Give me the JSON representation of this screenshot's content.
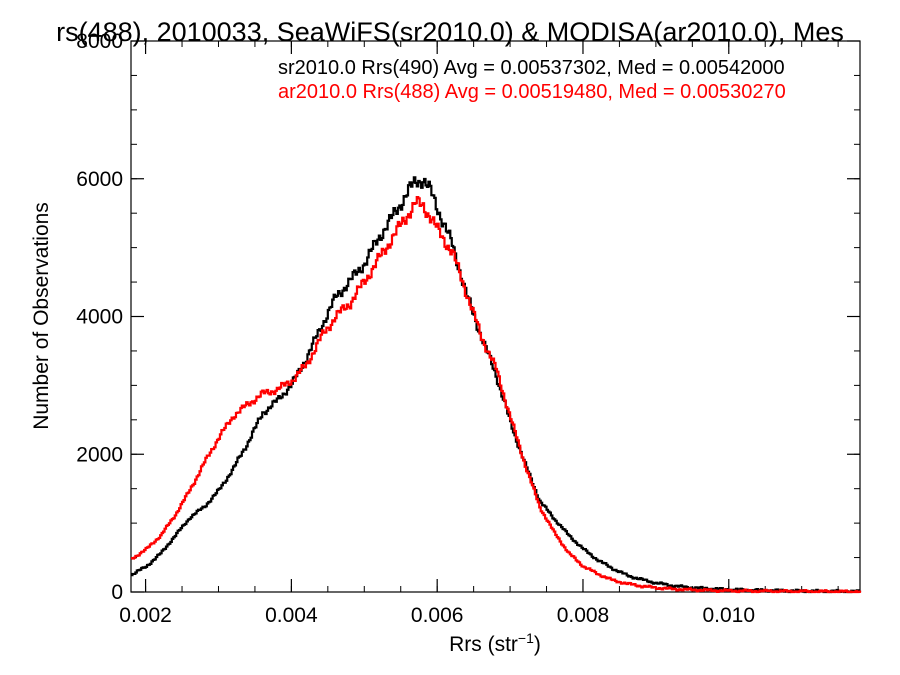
{
  "chart_data": {
    "type": "line",
    "title": "rs(488), 2010033, SeaWiFS(sr2010.0) & MODISA(ar2010.0), Mes",
    "xlabel_main": "Rrs (str",
    "xlabel_sup": "−1",
    "xlabel_close": ")",
    "ylabel": "Number of Observations",
    "xlim": [
      0.0018,
      0.0118
    ],
    "ylim": [
      0,
      8000
    ],
    "x_ticks": [
      0.002,
      0.004,
      0.006,
      0.008,
      0.01
    ],
    "x_tick_labels": [
      "0.002",
      "0.004",
      "0.006",
      "0.008",
      "0.010"
    ],
    "y_ticks": [
      0,
      2000,
      4000,
      6000,
      8000
    ],
    "y_tick_labels": [
      "0",
      "2000",
      "4000",
      "6000",
      "8000"
    ],
    "x_minor_step": 0.0005,
    "y_minor_step": 500,
    "grid": false,
    "legend_position": "top-right",
    "series": [
      {
        "legend": "sr2010.0 Rrs(490) Avg = 0.00537302, Med = 0.00542000",
        "color": "#000000",
        "points": [
          [
            0.0018,
            250
          ],
          [
            0.002,
            370
          ],
          [
            0.0022,
            560
          ],
          [
            0.0024,
            820
          ],
          [
            0.0026,
            1080
          ],
          [
            0.0028,
            1240
          ],
          [
            0.003,
            1480
          ],
          [
            0.0032,
            1800
          ],
          [
            0.0034,
            2180
          ],
          [
            0.0036,
            2600
          ],
          [
            0.0038,
            2780
          ],
          [
            0.004,
            3020
          ],
          [
            0.0042,
            3400
          ],
          [
            0.0044,
            3850
          ],
          [
            0.0046,
            4280
          ],
          [
            0.0048,
            4520
          ],
          [
            0.005,
            4780
          ],
          [
            0.0052,
            5160
          ],
          [
            0.0054,
            5480
          ],
          [
            0.0056,
            5830
          ],
          [
            0.0057,
            5960
          ],
          [
            0.0058,
            5990
          ],
          [
            0.0059,
            5820
          ],
          [
            0.006,
            5560
          ],
          [
            0.0062,
            5040
          ],
          [
            0.0064,
            4300
          ],
          [
            0.0066,
            3700
          ],
          [
            0.0068,
            3150
          ],
          [
            0.007,
            2450
          ],
          [
            0.0072,
            1850
          ],
          [
            0.0074,
            1320
          ],
          [
            0.0076,
            1060
          ],
          [
            0.0078,
            820
          ],
          [
            0.008,
            620
          ],
          [
            0.0082,
            460
          ],
          [
            0.0084,
            340
          ],
          [
            0.0086,
            240
          ],
          [
            0.0088,
            180
          ],
          [
            0.009,
            130
          ],
          [
            0.0092,
            95
          ],
          [
            0.0094,
            70
          ],
          [
            0.0096,
            55
          ],
          [
            0.0098,
            45
          ],
          [
            0.01,
            35
          ],
          [
            0.0104,
            25
          ],
          [
            0.0108,
            18
          ],
          [
            0.0112,
            12
          ],
          [
            0.0116,
            8
          ],
          [
            0.0118,
            6
          ]
        ]
      },
      {
        "legend": "ar2010.0 Rrs(488) Avg = 0.00519480, Med = 0.00530270",
        "color": "#ff0000",
        "points": [
          [
            0.0018,
            480
          ],
          [
            0.002,
            620
          ],
          [
            0.0022,
            820
          ],
          [
            0.0024,
            1120
          ],
          [
            0.0026,
            1480
          ],
          [
            0.0028,
            1880
          ],
          [
            0.003,
            2250
          ],
          [
            0.0032,
            2560
          ],
          [
            0.0034,
            2730
          ],
          [
            0.0036,
            2880
          ],
          [
            0.0038,
            2940
          ],
          [
            0.004,
            3070
          ],
          [
            0.0042,
            3300
          ],
          [
            0.0044,
            3700
          ],
          [
            0.0046,
            4000
          ],
          [
            0.0048,
            4200
          ],
          [
            0.005,
            4520
          ],
          [
            0.0052,
            4850
          ],
          [
            0.0054,
            5180
          ],
          [
            0.0056,
            5500
          ],
          [
            0.0057,
            5650
          ],
          [
            0.0058,
            5600
          ],
          [
            0.0059,
            5450
          ],
          [
            0.006,
            5250
          ],
          [
            0.0062,
            4930
          ],
          [
            0.0064,
            4320
          ],
          [
            0.0066,
            3700
          ],
          [
            0.0068,
            3240
          ],
          [
            0.007,
            2520
          ],
          [
            0.0072,
            1840
          ],
          [
            0.0074,
            1230
          ],
          [
            0.0076,
            860
          ],
          [
            0.0078,
            560
          ],
          [
            0.008,
            370
          ],
          [
            0.0082,
            260
          ],
          [
            0.0084,
            170
          ],
          [
            0.0086,
            120
          ],
          [
            0.0088,
            85
          ],
          [
            0.009,
            60
          ],
          [
            0.0092,
            45
          ],
          [
            0.0094,
            35
          ],
          [
            0.0096,
            28
          ],
          [
            0.0098,
            22
          ],
          [
            0.01,
            18
          ],
          [
            0.0104,
            14
          ],
          [
            0.0108,
            10
          ],
          [
            0.0112,
            8
          ],
          [
            0.0116,
            6
          ],
          [
            0.0118,
            5
          ]
        ]
      }
    ]
  }
}
